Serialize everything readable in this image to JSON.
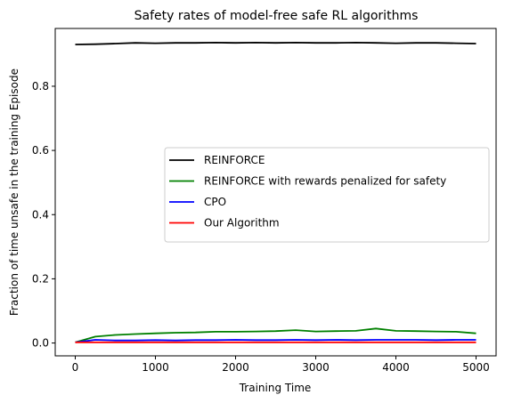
{
  "chart_data": {
    "type": "line",
    "title": "Safety rates of model-free safe RL algorithms",
    "xlabel": "Training Time",
    "ylabel": "Fraction of time unsafe in the training Episode",
    "xlim": [
      -250,
      5250
    ],
    "ylim": [
      -0.04,
      0.98
    ],
    "xticks": [
      0,
      1000,
      2000,
      3000,
      4000,
      5000
    ],
    "yticks": [
      0.0,
      0.2,
      0.4,
      0.6,
      0.8
    ],
    "grid": false,
    "legend_position": "center-right",
    "series": [
      {
        "name": "REINFORCE",
        "color": "#000000",
        "x": [
          0,
          250,
          500,
          750,
          1000,
          1250,
          1500,
          1750,
          2000,
          2250,
          2500,
          2750,
          3000,
          3250,
          3500,
          3750,
          4000,
          4250,
          4500,
          4750,
          5000
        ],
        "y": [
          0.93,
          0.931,
          0.933,
          0.935,
          0.934,
          0.935,
          0.935,
          0.936,
          0.935,
          0.936,
          0.935,
          0.936,
          0.935,
          0.935,
          0.936,
          0.935,
          0.934,
          0.935,
          0.935,
          0.934,
          0.933
        ]
      },
      {
        "name": "REINFORCE with rewards penalized for safety",
        "color": "#008000",
        "x": [
          0,
          250,
          500,
          750,
          1000,
          1250,
          1500,
          1750,
          2000,
          2250,
          2500,
          2750,
          3000,
          3250,
          3500,
          3750,
          4000,
          4250,
          4500,
          4750,
          5000
        ],
        "y": [
          0.002,
          0.02,
          0.025,
          0.028,
          0.03,
          0.032,
          0.033,
          0.035,
          0.035,
          0.036,
          0.037,
          0.04,
          0.036,
          0.037,
          0.038,
          0.045,
          0.038,
          0.037,
          0.036,
          0.035,
          0.03
        ]
      },
      {
        "name": "CPO",
        "color": "#0000ff",
        "x": [
          0,
          250,
          500,
          750,
          1000,
          1250,
          1500,
          1750,
          2000,
          2250,
          2500,
          2750,
          3000,
          3250,
          3500,
          3750,
          4000,
          4250,
          4500,
          4750,
          5000
        ],
        "y": [
          0.002,
          0.01,
          0.008,
          0.008,
          0.009,
          0.008,
          0.009,
          0.009,
          0.01,
          0.009,
          0.009,
          0.01,
          0.009,
          0.01,
          0.009,
          0.01,
          0.01,
          0.01,
          0.009,
          0.01,
          0.01
        ]
      },
      {
        "name": "Our Algorithm",
        "color": "#ff0000",
        "x": [
          0,
          5000
        ],
        "y": [
          0.002,
          0.002
        ]
      }
    ]
  }
}
